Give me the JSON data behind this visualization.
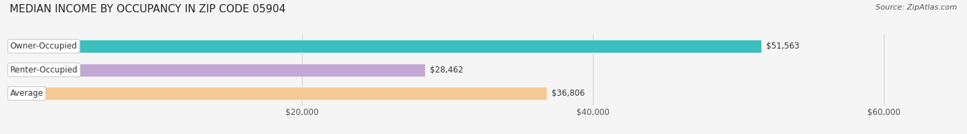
{
  "title": "MEDIAN INCOME BY OCCUPANCY IN ZIP CODE 05904",
  "source": "Source: ZipAtlas.com",
  "categories": [
    "Owner-Occupied",
    "Renter-Occupied",
    "Average"
  ],
  "values": [
    51563,
    28462,
    36806
  ],
  "value_labels": [
    "$51,563",
    "$28,462",
    "$36,806"
  ],
  "bar_colors": [
    "#3bbfbf",
    "#c4a8d4",
    "#f5c992"
  ],
  "bar_edge_colors": [
    "#2eaaaa",
    "#b098c4",
    "#e8b87a"
  ],
  "label_bg": "#ffffff",
  "xlim": [
    0,
    65000
  ],
  "xticks": [
    0,
    20000,
    40000,
    60000
  ],
  "xtick_labels": [
    "$20,000",
    "$40,000",
    "$60,000"
  ],
  "bar_height": 0.55,
  "figsize": [
    14.06,
    1.96
  ],
  "dpi": 100,
  "bg_color": "#f5f5f5",
  "title_fontsize": 11,
  "label_fontsize": 8.5,
  "value_fontsize": 8.5,
  "source_fontsize": 8
}
